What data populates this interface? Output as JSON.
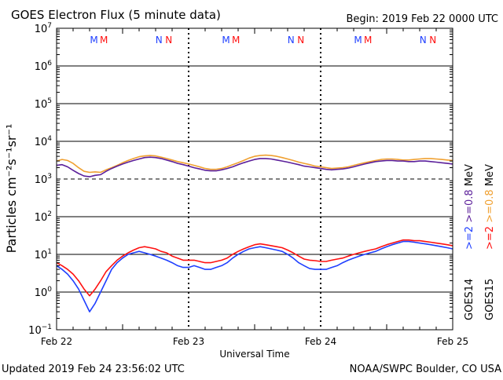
{
  "header": {
    "title": "GOES Electron Flux (5 minute data)",
    "begin": "Begin: 2019 Feb 22 0000 UTC"
  },
  "footer": {
    "updated": "Updated 2019 Feb 24 23:56:02 UTC",
    "source": "NOAA/SWPC Boulder, CO USA"
  },
  "colors": {
    "goes14_ge2": "#1f3fff",
    "goes15_ge2": "#ff1010",
    "goes14_ge08": "#5b1f9a",
    "goes15_ge08": "#f0a030",
    "axis": "#000000"
  },
  "chart_data": {
    "type": "line",
    "xlabel": "Universal Time",
    "ylabel": "Particles cm⁻²s⁻¹sr⁻¹",
    "y_scale": "log",
    "ylim": [
      0.1,
      10000000
    ],
    "xlim": [
      0,
      72
    ],
    "x_units": "hours since 2019 Feb 22 0000 UTC",
    "x_ticks": [
      {
        "x": 0,
        "label": "Feb 22"
      },
      {
        "x": 24,
        "label": "Feb 23"
      },
      {
        "x": 48,
        "label": "Feb 24"
      },
      {
        "x": 72,
        "label": "Feb 25"
      }
    ],
    "y_ticks": [
      {
        "exp": -1
      },
      {
        "exp": 0
      },
      {
        "exp": 1
      },
      {
        "exp": 2
      },
      {
        "exp": 3
      },
      {
        "exp": 4
      },
      {
        "exp": 5
      },
      {
        "exp": 6
      },
      {
        "exp": 7
      }
    ],
    "threshold": {
      "y": 1000,
      "style": "dashed"
    },
    "magnetopause_markers": [
      {
        "x": 6.8,
        "label": "M",
        "color": "#1f3fff"
      },
      {
        "x": 8.6,
        "label": "M",
        "color": "#ff1010"
      },
      {
        "x": 18.6,
        "label": "N",
        "color": "#1f3fff"
      },
      {
        "x": 20.4,
        "label": "N",
        "color": "#ff1010"
      },
      {
        "x": 30.8,
        "label": "M",
        "color": "#1f3fff"
      },
      {
        "x": 32.6,
        "label": "M",
        "color": "#ff1010"
      },
      {
        "x": 42.6,
        "label": "N",
        "color": "#1f3fff"
      },
      {
        "x": 44.4,
        "label": "N",
        "color": "#ff1010"
      },
      {
        "x": 54.8,
        "label": "M",
        "color": "#1f3fff"
      },
      {
        "x": 56.6,
        "label": "M",
        "color": "#ff1010"
      },
      {
        "x": 66.6,
        "label": "N",
        "color": "#1f3fff"
      },
      {
        "x": 68.4,
        "label": "N",
        "color": "#ff1010"
      }
    ],
    "series": [
      {
        "name": "GOES15 >=0.8 MeV",
        "color": "#f0a030",
        "x": [
          0,
          1,
          2,
          3,
          4,
          5,
          6,
          7,
          8,
          9,
          10,
          11,
          12,
          13,
          14,
          15,
          16,
          17,
          18,
          19,
          20,
          21,
          22,
          23,
          24,
          25,
          26,
          27,
          28,
          29,
          30,
          31,
          32,
          33,
          34,
          35,
          36,
          37,
          38,
          39,
          40,
          41,
          42,
          43,
          44,
          45,
          46,
          47,
          48,
          49,
          50,
          51,
          52,
          53,
          54,
          55,
          56,
          57,
          58,
          59,
          60,
          61,
          62,
          63,
          64,
          65,
          66,
          67,
          68,
          69,
          70,
          71,
          72
        ],
        "y": [
          3000,
          3300,
          3100,
          2600,
          2000,
          1600,
          1500,
          1550,
          1500,
          1750,
          2000,
          2300,
          2700,
          3100,
          3500,
          3900,
          4100,
          4200,
          4100,
          3800,
          3500,
          3200,
          2900,
          2700,
          2500,
          2300,
          2100,
          1900,
          1800,
          1800,
          1900,
          2100,
          2400,
          2700,
          3100,
          3600,
          4000,
          4200,
          4300,
          4200,
          4000,
          3700,
          3400,
          3100,
          2800,
          2600,
          2400,
          2200,
          2100,
          2000,
          1900,
          1950,
          2000,
          2100,
          2300,
          2500,
          2700,
          2900,
          3100,
          3300,
          3400,
          3400,
          3300,
          3200,
          3200,
          3300,
          3400,
          3500,
          3500,
          3400,
          3300,
          3200,
          3100
        ]
      },
      {
        "name": "GOES14 >=0.8 MeV",
        "color": "#5b1f9a",
        "x": [
          0,
          1,
          2,
          3,
          4,
          5,
          6,
          7,
          8,
          9,
          10,
          11,
          12,
          13,
          14,
          15,
          16,
          17,
          18,
          19,
          20,
          21,
          22,
          23,
          24,
          25,
          26,
          27,
          28,
          29,
          30,
          31,
          32,
          33,
          34,
          35,
          36,
          37,
          38,
          39,
          40,
          41,
          42,
          43,
          44,
          45,
          46,
          47,
          48,
          49,
          50,
          51,
          52,
          53,
          54,
          55,
          56,
          57,
          58,
          59,
          60,
          61,
          62,
          63,
          64,
          65,
          66,
          67,
          68,
          69,
          70,
          71,
          72
        ],
        "y": [
          2300,
          2400,
          2100,
          1700,
          1400,
          1200,
          1150,
          1250,
          1300,
          1600,
          1900,
          2200,
          2500,
          2800,
          3100,
          3400,
          3700,
          3800,
          3700,
          3500,
          3200,
          2900,
          2600,
          2400,
          2200,
          2000,
          1850,
          1700,
          1650,
          1650,
          1750,
          1900,
          2100,
          2400,
          2700,
          3000,
          3300,
          3500,
          3500,
          3400,
          3200,
          3000,
          2800,
          2600,
          2400,
          2200,
          2100,
          2000,
          1900,
          1800,
          1750,
          1800,
          1850,
          1950,
          2100,
          2300,
          2500,
          2700,
          2900,
          3000,
          3100,
          3100,
          3000,
          3000,
          2900,
          2900,
          3000,
          3000,
          2900,
          2800,
          2700,
          2600,
          2500
        ]
      },
      {
        "name": "GOES14 >=2 MeV",
        "color": "#1f3fff",
        "x": [
          0,
          1,
          2,
          3,
          4,
          5,
          6,
          7,
          8,
          9,
          10,
          11,
          12,
          13,
          14,
          15,
          16,
          17,
          18,
          19,
          20,
          21,
          22,
          23,
          24,
          25,
          26,
          27,
          28,
          29,
          30,
          31,
          32,
          33,
          34,
          35,
          36,
          37,
          38,
          39,
          40,
          41,
          42,
          43,
          44,
          45,
          46,
          47,
          48,
          49,
          50,
          51,
          52,
          53,
          54,
          55,
          56,
          57,
          58,
          59,
          60,
          61,
          62,
          63,
          64,
          65,
          66,
          67,
          68,
          69,
          70,
          71,
          72
        ],
        "y": [
          5,
          4,
          3,
          2,
          1.2,
          0.6,
          0.3,
          0.5,
          1,
          2,
          4,
          6,
          8,
          10,
          11,
          12,
          11,
          10,
          9,
          8,
          7,
          6,
          5,
          4.5,
          4.5,
          5,
          4.5,
          4,
          4,
          4.5,
          5,
          6,
          8,
          10,
          12,
          14,
          15,
          16,
          15,
          14,
          13,
          12,
          10,
          8,
          6,
          5,
          4.2,
          4,
          4,
          4,
          4.5,
          5,
          6,
          7,
          8,
          9,
          10,
          11,
          12,
          14,
          16,
          18,
          20,
          22,
          22,
          21,
          20,
          19,
          18,
          17,
          16,
          15,
          14
        ]
      },
      {
        "name": "GOES15 >=2 MeV",
        "color": "#ff1010",
        "x": [
          0,
          1,
          2,
          3,
          4,
          5,
          6,
          7,
          8,
          9,
          10,
          11,
          12,
          13,
          14,
          15,
          16,
          17,
          18,
          19,
          20,
          21,
          22,
          23,
          24,
          25,
          26,
          27,
          28,
          29,
          30,
          31,
          32,
          33,
          34,
          35,
          36,
          37,
          38,
          39,
          40,
          41,
          42,
          43,
          44,
          45,
          46,
          47,
          48,
          49,
          50,
          51,
          52,
          53,
          54,
          55,
          56,
          57,
          58,
          59,
          60,
          61,
          62,
          63,
          64,
          65,
          66,
          67,
          68,
          69,
          70,
          71,
          72
        ],
        "y": [
          6,
          5,
          4,
          3,
          2,
          1.2,
          0.8,
          1.2,
          2,
          3.5,
          5,
          7,
          9,
          11,
          13,
          15,
          16,
          15,
          14,
          12,
          11,
          9,
          8,
          7,
          7,
          7,
          6.5,
          6,
          6,
          6.5,
          7,
          8,
          10,
          12,
          14,
          16,
          18,
          19,
          18,
          17,
          16,
          15,
          13,
          11,
          9,
          7.5,
          7,
          6.8,
          6.5,
          6.5,
          7,
          7.5,
          8,
          9,
          10,
          11,
          12,
          13,
          14,
          16,
          18,
          20,
          22,
          24,
          24,
          23,
          23,
          22,
          21,
          20,
          19,
          18,
          17
        ]
      }
    ],
    "legend": [
      {
        "label": ">=2",
        "color": "#1f3fff"
      },
      {
        "label": ">=2",
        "color": "#ff1010"
      },
      {
        "label": ">=0.8",
        "color": "#5b1f9a"
      },
      {
        "label": ">=0.8",
        "color": "#f0a030"
      },
      {
        "label": "MeV",
        "color": "#000000"
      },
      {
        "label": "MeV",
        "color": "#000000"
      },
      {
        "label": "GOES14",
        "color": "#000000"
      },
      {
        "label": "GOES15",
        "color": "#000000"
      }
    ],
    "legend_position": "right",
    "grid": true
  }
}
